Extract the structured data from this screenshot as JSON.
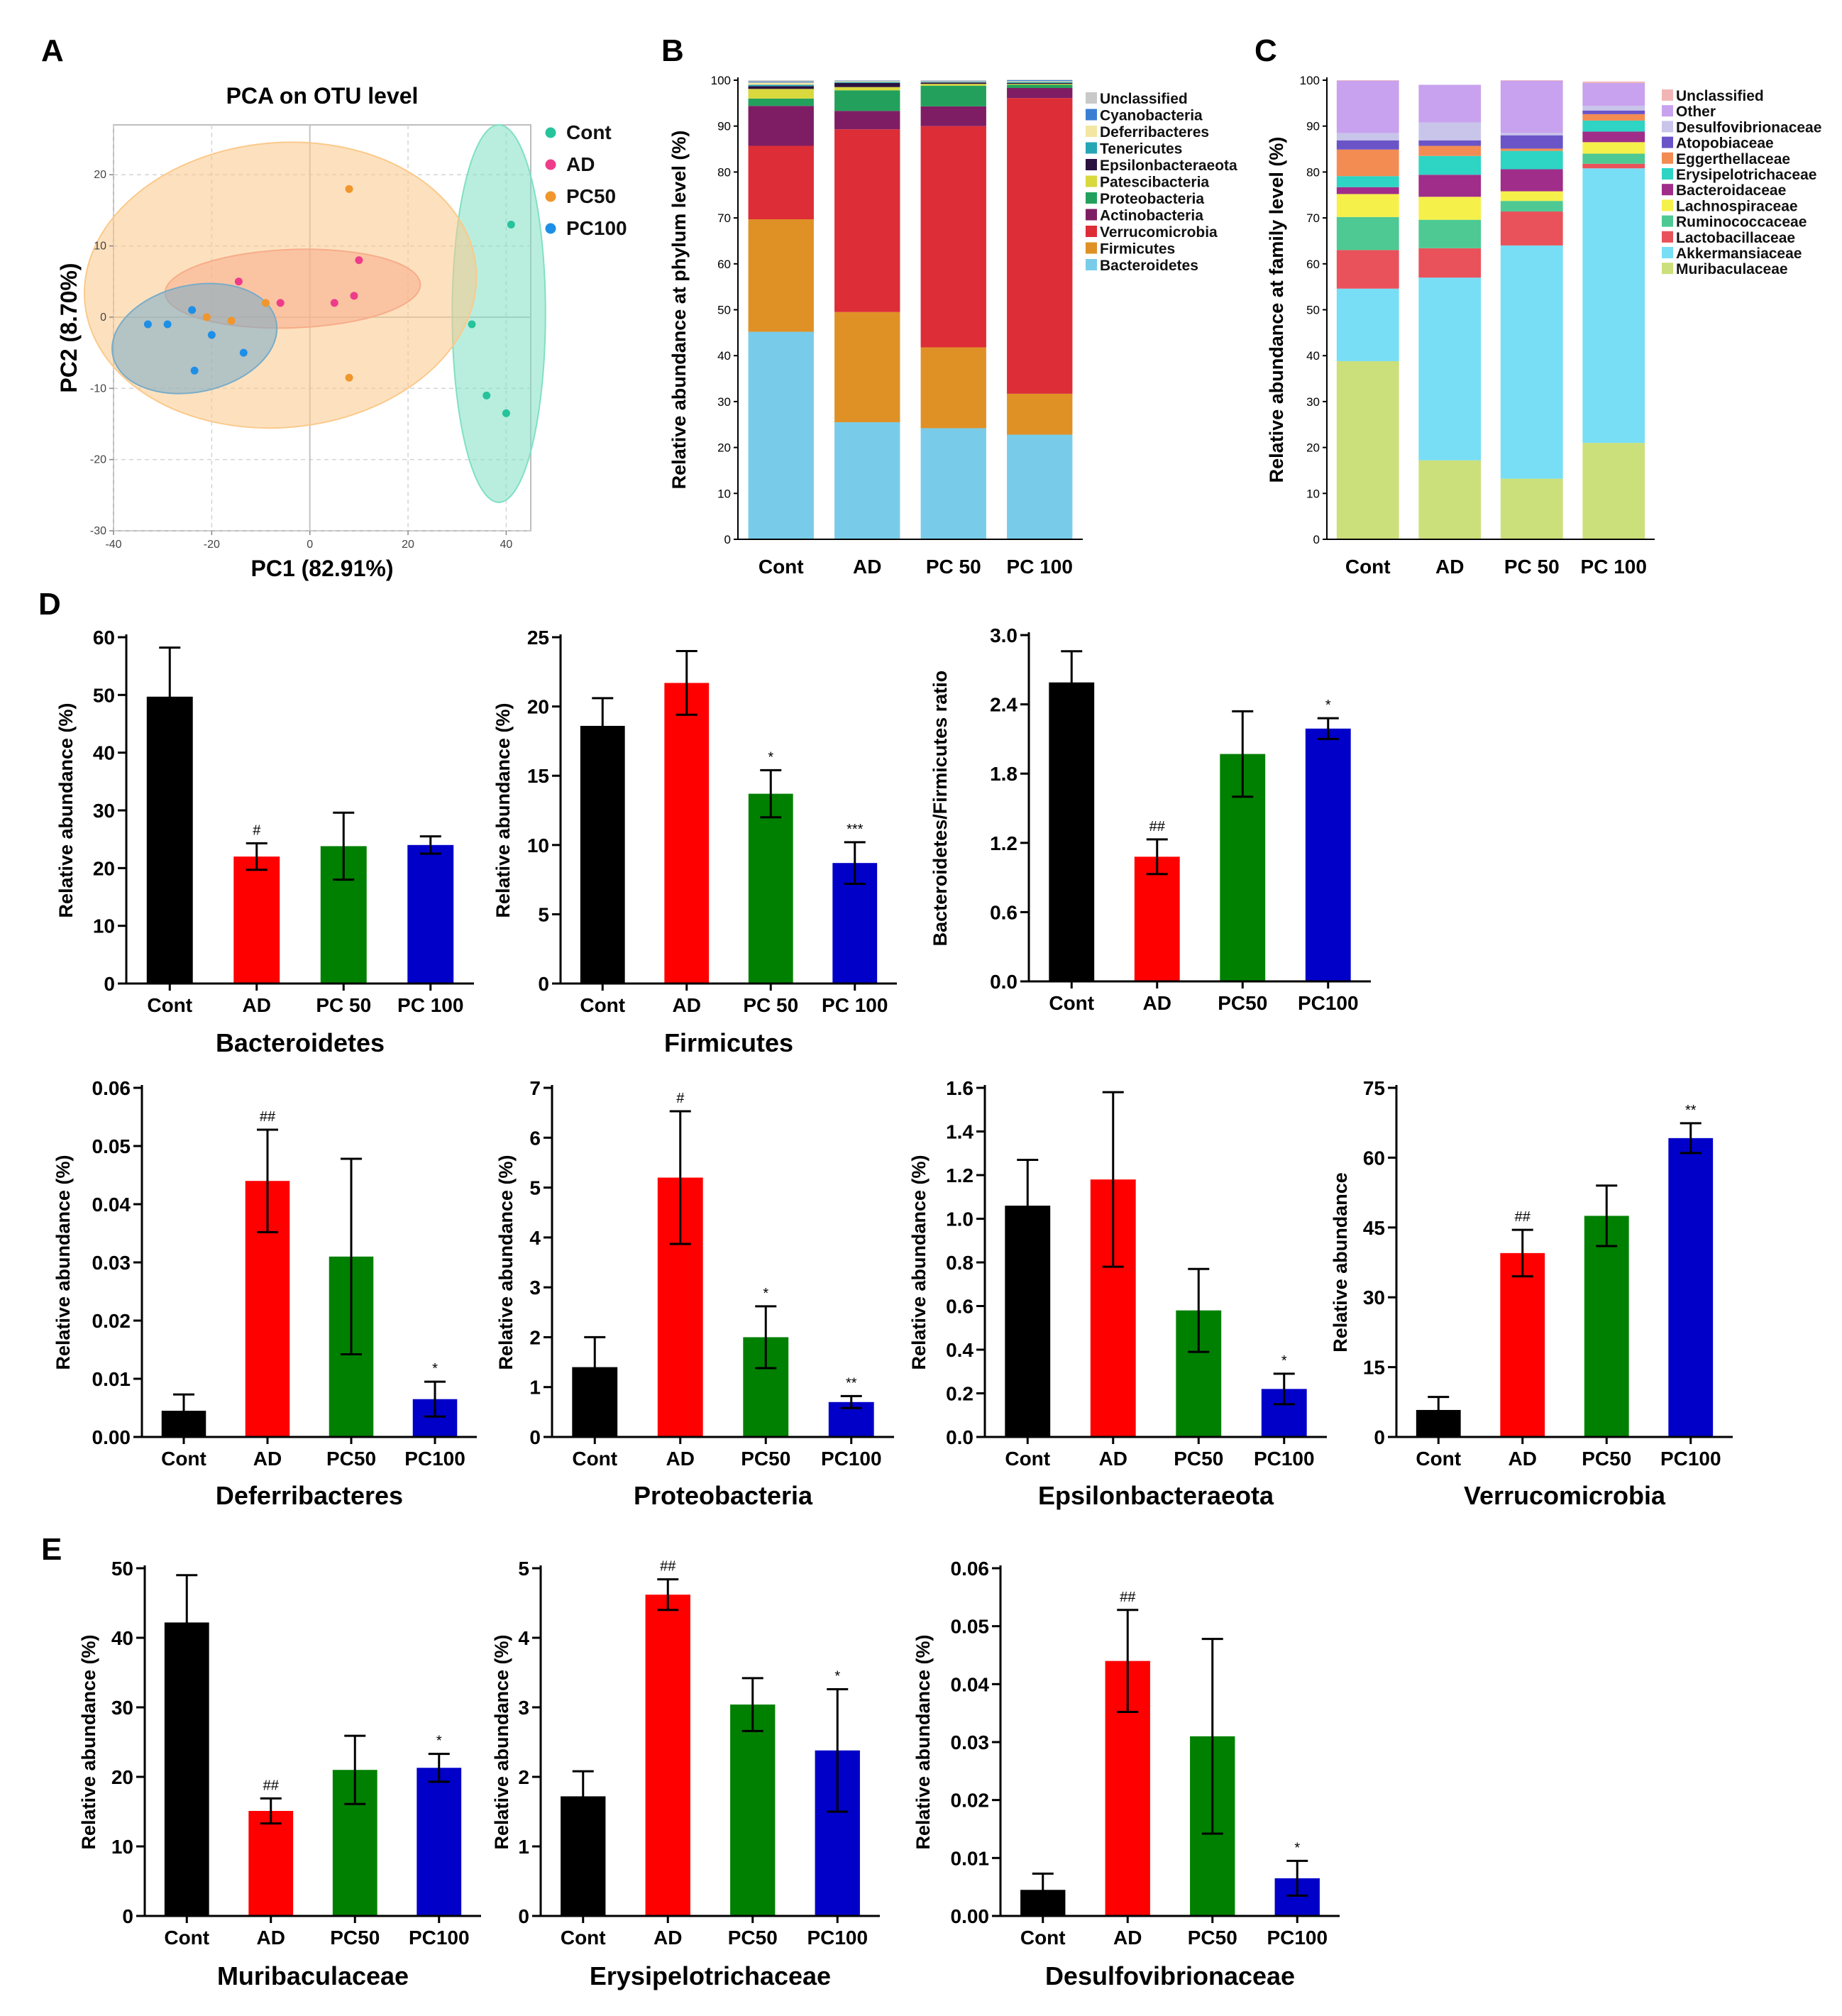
{
  "panels": {
    "A": "A",
    "B": "B",
    "C": "C",
    "D": "D",
    "E": "E"
  },
  "chart_data": [
    {
      "id": "pca",
      "type": "scatter",
      "title": "PCA on OTU level",
      "xlabel": "PC1 (82.91%)",
      "ylabel": "PC2 (8.70%)",
      "xlim": [
        -40,
        45
      ],
      "ylim": [
        -30,
        27
      ],
      "xticks": [
        -40,
        -20,
        0,
        20,
        40
      ],
      "xtick_labels": [
        "-40",
        "-20",
        "0",
        "20",
        "40"
      ],
      "yticks": [
        -30,
        -20,
        -10,
        0,
        10,
        20
      ],
      "ytick_labels": [
        "-30",
        "-20",
        "-10",
        "0",
        "10",
        "20"
      ],
      "series": [
        {
          "name": "Cont",
          "color": "#27c39a",
          "fill": "#80e0c4",
          "points": [
            [
              33,
              -1
            ],
            [
              36,
              -11
            ],
            [
              40,
              -13.5
            ],
            [
              41,
              13
            ]
          ],
          "ellipse": {
            "cx": 38.5,
            "cy": 0.5,
            "rx": 9.5,
            "ry": 26.5,
            "angle": 0
          }
        },
        {
          "name": "AD",
          "color": "#ee3c8a",
          "fill": "#f28a8a",
          "points": [
            [
              -14.5,
              5
            ],
            [
              -6,
              2
            ],
            [
              5,
              2
            ],
            [
              9,
              3
            ],
            [
              10,
              8
            ]
          ],
          "ellipse": {
            "cx": -3.5,
            "cy": 4,
            "rx": 26,
            "ry": 5.5,
            "angle": -2
          }
        },
        {
          "name": "PC50",
          "color": "#f0962c",
          "fill": "#fbc98a",
          "points": [
            [
              -21,
              0
            ],
            [
              -16,
              -0.5
            ],
            [
              -9,
              2
            ],
            [
              8,
              18
            ],
            [
              8,
              -8.5
            ]
          ],
          "ellipse": {
            "cx": -6,
            "cy": 4.5,
            "rx": 40,
            "ry": 20,
            "angle": -5
          }
        },
        {
          "name": "PC100",
          "color": "#1e8fe6",
          "fill": "#78acc8",
          "points": [
            [
              -33,
              -1
            ],
            [
              -24,
              1
            ],
            [
              -20,
              -2.5
            ],
            [
              -13.5,
              -5
            ],
            [
              -23.5,
              -7.5
            ],
            [
              -29,
              -1
            ]
          ],
          "ellipse": {
            "cx": -23.5,
            "cy": -3,
            "rx": 17,
            "ry": 7.5,
            "angle": -12
          }
        }
      ]
    },
    {
      "id": "phylum",
      "type": "bar",
      "stacked": true,
      "ylabel": "Relative abundance at phylum level (%)",
      "ylim": [
        0,
        100
      ],
      "yticks": [
        0,
        10,
        20,
        30,
        40,
        50,
        60,
        70,
        80,
        90,
        100
      ],
      "ytick_labels": [
        "0",
        "10",
        "20",
        "30",
        "40",
        "50",
        "60",
        "70",
        "80",
        "90",
        "100"
      ],
      "categories": [
        "Cont",
        "AD",
        "PC 50",
        "PC 100"
      ],
      "series": [
        {
          "name": "Bacteroidetes",
          "color": "#79cce9",
          "values": [
            45.2,
            25.5,
            24.2,
            22.8
          ]
        },
        {
          "name": "Firmicutes",
          "color": "#df9126",
          "values": [
            24.5,
            24.0,
            17.6,
            8.9
          ]
        },
        {
          "name": "Verrucomicrobia",
          "color": "#dd2d36",
          "values": [
            16.0,
            39.8,
            48.2,
            64.4
          ]
        },
        {
          "name": "Actinobacteria",
          "color": "#7e1d64",
          "values": [
            8.7,
            4.0,
            4.3,
            2.2
          ]
        },
        {
          "name": "Proteobacteria",
          "color": "#23a15c",
          "values": [
            1.6,
            4.5,
            4.5,
            0.7
          ]
        },
        {
          "name": "Patescibacteria",
          "color": "#d9d83c",
          "values": [
            2.1,
            0.7,
            0.4,
            0.2
          ]
        },
        {
          "name": "Epsilonbacteraeota",
          "color": "#2b1240",
          "values": [
            0.6,
            0.9,
            0.3,
            0.2
          ]
        },
        {
          "name": "Tenericutes",
          "color": "#25a6b4",
          "values": [
            0.3,
            0.2,
            0.1,
            0.2
          ]
        },
        {
          "name": "Deferribacteres",
          "color": "#f3e6a2",
          "values": [
            0.5,
            0.2,
            0.1,
            0.2
          ]
        },
        {
          "name": "Cyanobacteria",
          "color": "#3a7fd3",
          "values": [
            0.2,
            0.1,
            0.1,
            0.2
          ]
        },
        {
          "name": "Unclassified",
          "color": "#c9c9c9",
          "values": [
            0.3,
            0.1,
            0.2,
            0.1
          ]
        }
      ]
    },
    {
      "id": "family",
      "type": "bar",
      "stacked": true,
      "ylabel": "Relative abundance at family level (%)",
      "ylim": [
        0,
        100
      ],
      "yticks": [
        0,
        10,
        20,
        30,
        40,
        50,
        60,
        70,
        80,
        90,
        100
      ],
      "ytick_labels": [
        "0",
        "10",
        "20",
        "30",
        "40",
        "50",
        "60",
        "70",
        "80",
        "90",
        "100"
      ],
      "categories": [
        "Cont",
        "AD",
        "PC 50",
        "PC 100"
      ],
      "series": [
        {
          "name": "Muribaculaceae",
          "color": "#cbe07a",
          "values": [
            38.8,
            17.2,
            13.2,
            21.0
          ]
        },
        {
          "name": "Akkermansiaceae",
          "color": "#78def5",
          "values": [
            15.8,
            39.8,
            50.8,
            59.8
          ]
        },
        {
          "name": "Lactobacillaceae",
          "color": "#e9525a",
          "values": [
            8.4,
            6.4,
            7.4,
            1.0
          ]
        },
        {
          "name": "Ruminococcaceae",
          "color": "#4ec993",
          "values": [
            7.2,
            6.2,
            2.3,
            2.2
          ]
        },
        {
          "name": "Lachnospiraceae",
          "color": "#f6f04a",
          "values": [
            5.0,
            5.0,
            2.1,
            2.5
          ]
        },
        {
          "name": "Bacteroidaceae",
          "color": "#a02d8a",
          "values": [
            1.5,
            4.8,
            4.8,
            2.3
          ]
        },
        {
          "name": "Erysipelotrichaceae",
          "color": "#2ed4c4",
          "values": [
            2.4,
            4.1,
            4.0,
            2.4
          ]
        },
        {
          "name": "Eggerthellaceae",
          "color": "#f28c53",
          "values": [
            5.8,
            2.2,
            0.5,
            1.4
          ]
        },
        {
          "name": "Atopobiaceae",
          "color": "#6a54c8",
          "values": [
            2.0,
            1.2,
            2.9,
            0.8
          ]
        },
        {
          "name": "Desulfovibrionaceae",
          "color": "#c9c5ea",
          "values": [
            1.6,
            3.9,
            0.5,
            1.0
          ]
        },
        {
          "name": "Other",
          "color": "#c8a2ee",
          "values": [
            11.4,
            8.2,
            11.4,
            5.0
          ]
        },
        {
          "name": "Unclassified",
          "color": "#f2b5b5",
          "values": [
            0.1,
            0.0,
            0.1,
            0.3
          ]
        }
      ]
    },
    {
      "id": "bacteroidetes",
      "type": "bar",
      "title": "Bacteroidetes",
      "ylabel": "Relative abundance (%)",
      "ylim": [
        0,
        60
      ],
      "yticks": [
        0,
        10,
        20,
        30,
        40,
        50,
        60
      ],
      "ytick_labels": [
        "0",
        "10",
        "20",
        "30",
        "40",
        "50",
        "60"
      ],
      "categories": [
        "Cont",
        "AD",
        "PC 50",
        "PC 100"
      ],
      "values": [
        49.7,
        22.0,
        23.8,
        24.0
      ],
      "errors": [
        8.5,
        2.3,
        5.8,
        1.5
      ],
      "significance": [
        "",
        "#",
        "",
        ""
      ]
    },
    {
      "id": "firmicutes",
      "type": "bar",
      "title": "Firmicutes",
      "ylabel": "Relative abundance (%)",
      "ylim": [
        0,
        25
      ],
      "yticks": [
        0,
        5,
        10,
        15,
        20,
        25
      ],
      "ytick_labels": [
        "0",
        "5",
        "10",
        "15",
        "20",
        "25"
      ],
      "categories": [
        "Cont",
        "AD",
        "PC 50",
        "PC 100"
      ],
      "values": [
        18.6,
        21.7,
        13.7,
        8.7
      ],
      "errors": [
        2.0,
        2.3,
        1.7,
        1.5
      ],
      "significance": [
        "",
        "",
        "*",
        "***"
      ]
    },
    {
      "id": "bf_ratio",
      "type": "bar",
      "title": "",
      "ylabel": "Bacteroidetes/Firmicutes ratio",
      "ylim": [
        0,
        3.0
      ],
      "yticks": [
        0,
        0.6,
        1.2,
        1.8,
        2.4,
        3.0
      ],
      "ytick_labels": [
        "0.0",
        "0.6",
        "1.2",
        "1.8",
        "2.4",
        "3.0"
      ],
      "categories": [
        "Cont",
        "AD",
        "PC50",
        "PC100"
      ],
      "values": [
        2.59,
        1.08,
        1.97,
        2.19
      ],
      "errors": [
        0.27,
        0.15,
        0.37,
        0.09
      ],
      "significance": [
        "",
        "##",
        "",
        "*"
      ]
    },
    {
      "id": "deferribacteres",
      "type": "bar",
      "title": "Deferribacteres",
      "ylabel": "Relative abundance (%)",
      "ylim": [
        0,
        0.06
      ],
      "yticks": [
        0,
        0.01,
        0.02,
        0.03,
        0.04,
        0.05,
        0.06
      ],
      "ytick_labels": [
        "0.00",
        "0.01",
        "0.02",
        "0.03",
        "0.04",
        "0.05",
        "0.06"
      ],
      "categories": [
        "Cont",
        "AD",
        "PC50",
        "PC100"
      ],
      "values": [
        0.0045,
        0.044,
        0.031,
        0.0065
      ],
      "errors": [
        0.0028,
        0.0088,
        0.0168,
        0.003
      ],
      "significance": [
        "",
        "##",
        "",
        "*"
      ]
    },
    {
      "id": "proteobacteria",
      "type": "bar",
      "title": "Proteobacteria",
      "ylabel": "Relative abundance (%)",
      "ylim": [
        0,
        7
      ],
      "yticks": [
        0,
        1,
        2,
        3,
        4,
        5,
        6,
        7
      ],
      "ytick_labels": [
        "0",
        "1",
        "2",
        "3",
        "4",
        "5",
        "6",
        "7"
      ],
      "categories": [
        "Cont",
        "AD",
        "PC50",
        "PC100"
      ],
      "values": [
        1.4,
        5.2,
        2.0,
        0.7
      ],
      "errors": [
        0.6,
        1.33,
        0.62,
        0.12
      ],
      "significance": [
        "",
        "#",
        "*",
        "**"
      ]
    },
    {
      "id": "epsilonbacteraeota",
      "type": "bar",
      "title": "Epsilonbacteraeota",
      "ylabel": "Relative abundance (%)",
      "ylim": [
        0,
        1.6
      ],
      "yticks": [
        0,
        0.2,
        0.4,
        0.6,
        0.8,
        1.0,
        1.2,
        1.4,
        1.6
      ],
      "ytick_labels": [
        "0.0",
        "0.2",
        "0.4",
        "0.6",
        "0.8",
        "1.0",
        "1.2",
        "1.4",
        "1.6"
      ],
      "categories": [
        "Cont",
        "AD",
        "PC50",
        "PC100"
      ],
      "values": [
        1.06,
        1.18,
        0.58,
        0.22
      ],
      "errors": [
        0.21,
        0.4,
        0.19,
        0.07
      ],
      "significance": [
        "",
        "",
        "",
        "*"
      ]
    },
    {
      "id": "verrucomicrobia",
      "type": "bar",
      "title": "Verrucomicrobia",
      "ylabel": "Relative abundance",
      "ylim": [
        0,
        75
      ],
      "yticks": [
        0,
        15,
        30,
        45,
        60,
        75
      ],
      "ytick_labels": [
        "0",
        "15",
        "30",
        "45",
        "60",
        "75"
      ],
      "categories": [
        "Cont",
        "AD",
        "PC50",
        "PC100"
      ],
      "values": [
        5.8,
        39.5,
        47.5,
        64.2
      ],
      "errors": [
        2.8,
        5.0,
        6.5,
        3.2
      ],
      "significance": [
        "",
        "##",
        "",
        "**"
      ]
    },
    {
      "id": "muribaculaceae",
      "type": "bar",
      "title": "Muribaculaceae",
      "ylabel": "Relative abundance (%)",
      "ylim": [
        0,
        50
      ],
      "yticks": [
        0,
        10,
        20,
        30,
        40,
        50
      ],
      "ytick_labels": [
        "0",
        "10",
        "20",
        "30",
        "40",
        "50"
      ],
      "categories": [
        "Cont",
        "AD",
        "PC50",
        "PC100"
      ],
      "values": [
        42.2,
        15.1,
        21.0,
        21.3
      ],
      "errors": [
        6.8,
        1.8,
        4.9,
        2.0
      ],
      "significance": [
        "",
        "##",
        "",
        "*"
      ]
    },
    {
      "id": "erysipelotrichaceae",
      "type": "bar",
      "title": "Erysipelotrichaceae",
      "ylabel": "Relative abundance (%)",
      "ylim": [
        0,
        5
      ],
      "yticks": [
        0,
        1,
        2,
        3,
        4,
        5
      ],
      "ytick_labels": [
        "0",
        "1",
        "2",
        "3",
        "4",
        "5"
      ],
      "categories": [
        "Cont",
        "AD",
        "PC50",
        "PC100"
      ],
      "values": [
        1.72,
        4.62,
        3.04,
        2.38
      ],
      "errors": [
        0.36,
        0.22,
        0.38,
        0.88
      ],
      "significance": [
        "",
        "##",
        "",
        "*"
      ]
    },
    {
      "id": "desulfovibrionaceae",
      "type": "bar",
      "title": "Desulfovibrionaceae",
      "ylabel": "Relative abundance (%)",
      "ylim": [
        0,
        0.06
      ],
      "yticks": [
        0,
        0.01,
        0.02,
        0.03,
        0.04,
        0.05,
        0.06
      ],
      "ytick_labels": [
        "0.00",
        "0.01",
        "0.02",
        "0.03",
        "0.04",
        "0.05",
        "0.06"
      ],
      "categories": [
        "Cont",
        "AD",
        "PC50",
        "PC100"
      ],
      "values": [
        0.0045,
        0.044,
        0.031,
        0.0065
      ],
      "errors": [
        0.0028,
        0.0088,
        0.0168,
        0.003
      ],
      "significance": [
        "",
        "##",
        "",
        "*"
      ]
    }
  ],
  "bar_colors": [
    "#000000",
    "#ff0000",
    "#008000",
    "#0000c8"
  ]
}
